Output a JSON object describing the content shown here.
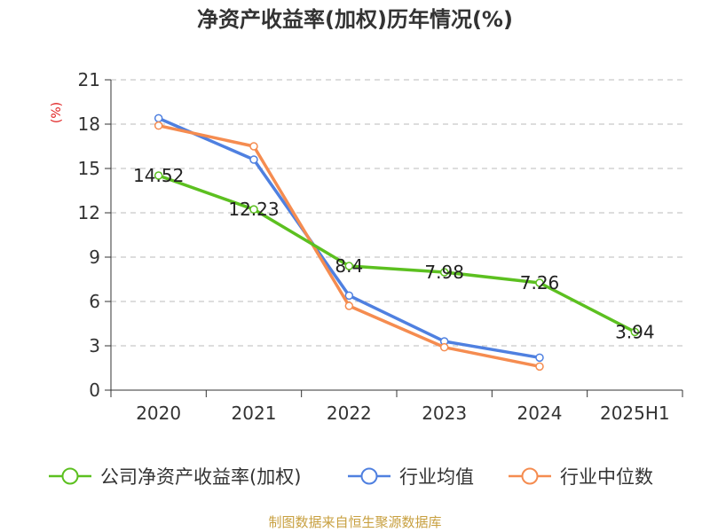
{
  "chart_data": {
    "type": "line",
    "title": "净资产收益率(加权)历年情况(%)",
    "ylabel": "(%)",
    "xlabel": "",
    "categories": [
      "2020",
      "2021",
      "2022",
      "2023",
      "2024",
      "2025H1"
    ],
    "ylim": [
      0,
      21
    ],
    "yticks": [
      0,
      3,
      6,
      9,
      12,
      15,
      18,
      21
    ],
    "grid": true,
    "legend_position": "bottom",
    "series": [
      {
        "name": "公司净资产收益率(加权)",
        "color": "#5cc020",
        "values": [
          14.52,
          12.23,
          8.4,
          7.98,
          7.26,
          3.94
        ],
        "labels": [
          "14.52",
          "12.23",
          "8.4",
          "7.98",
          "7.26",
          "3.94"
        ]
      },
      {
        "name": "行业均值",
        "color": "#4f80e0",
        "values": [
          18.4,
          15.6,
          6.4,
          3.3,
          2.2,
          null
        ]
      },
      {
        "name": "行业中位数",
        "color": "#f58c50",
        "values": [
          17.9,
          16.5,
          5.7,
          2.9,
          1.6,
          null
        ]
      }
    ],
    "source": "制图数据来自恒生聚源数据库"
  }
}
